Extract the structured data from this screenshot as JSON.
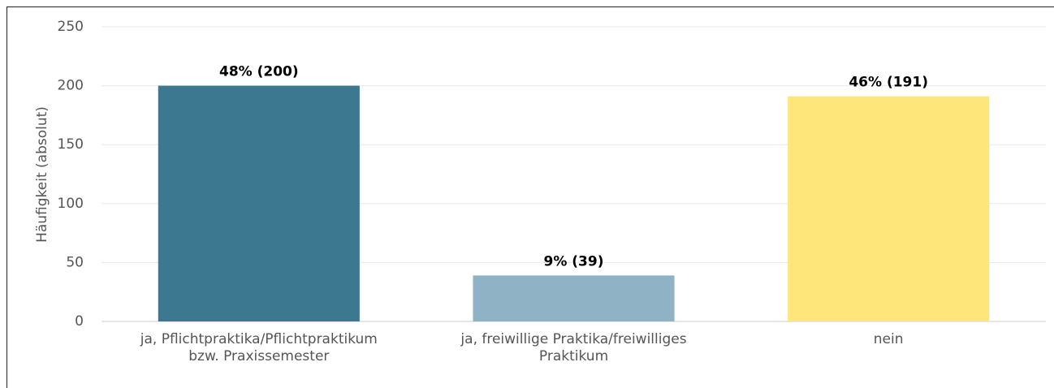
{
  "chart_data": {
    "type": "bar",
    "y_label": "Häufigkeit (absolut)",
    "categories": [
      "ja, Pflichtpraktika/Pflichtpraktikum\nbzw. Praxissemester",
      "ja, freiwillige Praktika/freiwilliges\nPraktikum",
      "nein"
    ],
    "values": [
      200,
      39,
      191
    ],
    "value_labels": [
      "48% (200)",
      "9% (39)",
      "46% (191)"
    ],
    "colors": [
      "#3d7891",
      "#8fb3c4",
      "#fee67a"
    ],
    "ylim": [
      0,
      250
    ],
    "yticks": [
      0,
      50,
      100,
      150,
      200,
      250
    ],
    "grid": true
  }
}
